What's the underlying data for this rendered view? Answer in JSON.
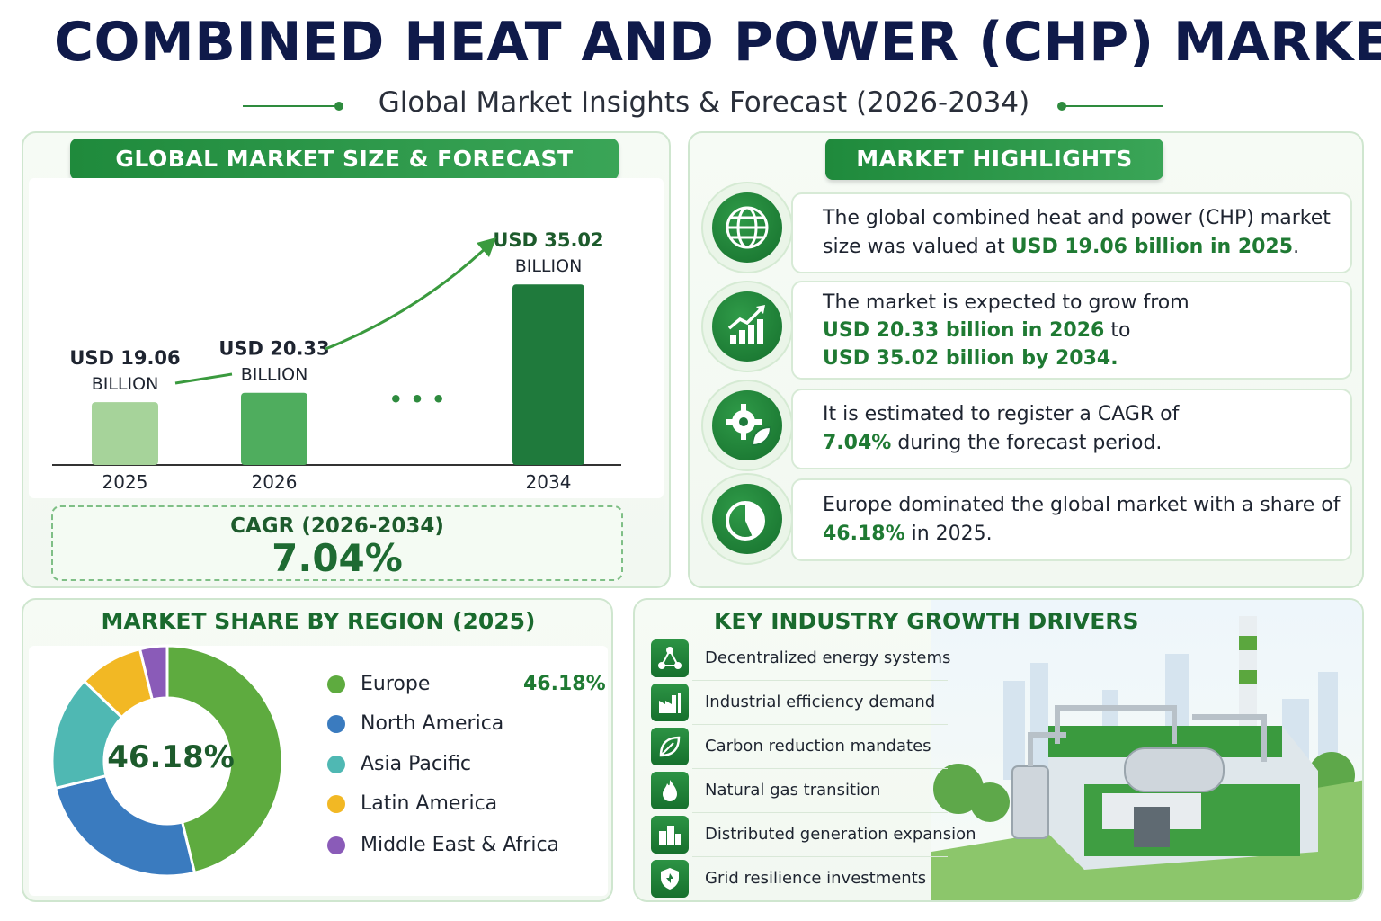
{
  "header": {
    "title": "COMBINED HEAT AND POWER (CHP) MARKET",
    "subtitle": "Global Market Insights & Forecast (2026-2034)"
  },
  "colors": {
    "brand_green": "#1f8a3c",
    "title_navy": "#0f1a4a"
  },
  "market_size": {
    "heading": "GLOBAL MARKET SIZE & FORECAST",
    "ellipsis": "• • •",
    "cagr_label": "CAGR (2026-2034)",
    "cagr_value": "7.04%"
  },
  "highlights": {
    "heading": "MARKET HIGHLIGHTS",
    "items": [
      {
        "icon": "globe-icon",
        "parts": [
          "The global combined heat and power (CHP) market size was valued at ",
          "USD 19.06 billion in 2025",
          "."
        ]
      },
      {
        "icon": "growth-chart-icon",
        "parts": [
          "The market is expected to grow from ",
          "USD 20.33 billion in 2026",
          " to ",
          "USD 35.02 billion by 2034."
        ]
      },
      {
        "icon": "gear-leaf-icon",
        "parts": [
          "It is estimated to register a CAGR of ",
          "7.04%",
          " during the forecast period."
        ]
      },
      {
        "icon": "pie-chart-icon",
        "parts": [
          "Europe dominated the global market with a share of ",
          "46.18%",
          " in 2025."
        ]
      }
    ]
  },
  "region": {
    "heading": "MARKET SHARE BY REGION (2025)",
    "center_label": "46.18%",
    "legend": [
      {
        "name": "Europe",
        "value": "46.18%",
        "color": "#5eab3f"
      },
      {
        "name": "North America",
        "value": "",
        "color": "#3a7bbf"
      },
      {
        "name": "Asia Pacific",
        "value": "",
        "color": "#4fb8b3"
      },
      {
        "name": "Latin America",
        "value": "",
        "color": "#f2b824"
      },
      {
        "name": "Middle East & Africa",
        "value": "",
        "color": "#8a5bb8"
      }
    ]
  },
  "drivers": {
    "heading": "KEY INDUSTRY GROWTH DRIVERS",
    "items": [
      {
        "label": "Decentralized energy systems",
        "icon": "network-icon"
      },
      {
        "label": "Industrial efficiency demand",
        "icon": "factory-icon"
      },
      {
        "label": "Carbon reduction mandates",
        "icon": "leaf-icon"
      },
      {
        "label": "Natural gas transition",
        "icon": "flame-icon"
      },
      {
        "label": "Distributed generation expansion",
        "icon": "buildings-icon"
      },
      {
        "label": "Grid resilience investments",
        "icon": "shield-icon"
      }
    ]
  },
  "chart_data": [
    {
      "type": "bar",
      "title": "GLOBAL MARKET SIZE & FORECAST",
      "categories": [
        "2025",
        "2026",
        "2034"
      ],
      "values": [
        19.06,
        20.33,
        35.02
      ],
      "data_labels": [
        [
          "USD 19.06",
          "BILLION"
        ],
        [
          "USD 20.33",
          "BILLION"
        ],
        [
          "USD 35.02",
          "BILLION"
        ]
      ],
      "colors": [
        "#a6d39a",
        "#4fad5e",
        "#1f7a3c"
      ],
      "ylim": [
        0,
        40
      ]
    },
    {
      "type": "pie",
      "title": "MARKET SHARE BY REGION (2025)",
      "categories": [
        "Europe",
        "North America",
        "Asia Pacific",
        "Latin America",
        "Middle East & Africa"
      ],
      "values": [
        46.18,
        25,
        16,
        9,
        3.82
      ],
      "colors": [
        "#5eab3f",
        "#3a7bbf",
        "#4fb8b3",
        "#f2b824",
        "#8a5bb8"
      ]
    }
  ]
}
